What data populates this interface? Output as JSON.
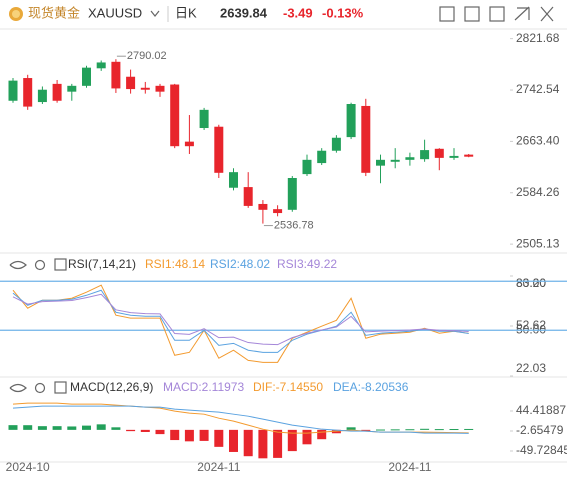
{
  "header": {
    "name": "现货黄金",
    "symbol": "XAUUSD",
    "period": "日K",
    "price": "2639.84",
    "change": "-3.49",
    "change_pct": "-0.13%"
  },
  "chart_data": [
    {
      "type": "candlestick",
      "categories": [
        null,
        "2024-10",
        null,
        null,
        null,
        null,
        null,
        null,
        null,
        null,
        null,
        null,
        null,
        null,
        "2024-11",
        null,
        null,
        null,
        null,
        null,
        null,
        null,
        null,
        null,
        null,
        null,
        null,
        "2024-11",
        null,
        null,
        null,
        null
      ],
      "open": [
        2726,
        2761,
        2724,
        2752,
        2740,
        2749,
        2776,
        2786,
        2763,
        2746,
        2749,
        2751,
        2663,
        2684,
        2686,
        2592,
        2593,
        2567,
        2559,
        2558,
        2613,
        2630,
        2649,
        2670,
        2718,
        2626,
        2632,
        2635,
        2636,
        2652,
        2638,
        2643
      ],
      "high": [
        2761,
        2766,
        2748,
        2758,
        2752,
        2780,
        2788,
        2790.02,
        2774,
        2755,
        2752,
        2752,
        2704,
        2715,
        2689,
        2622,
        2616,
        2573,
        2565,
        2610,
        2643,
        2653,
        2673,
        2723,
        2729,
        2643,
        2653,
        2646,
        2666,
        2653,
        2653,
        2644
      ],
      "low": [
        2723,
        2712,
        2721,
        2723,
        2726,
        2746,
        2772,
        2738,
        2737,
        2737,
        2732,
        2653,
        2644,
        2681,
        2607,
        2588,
        2561,
        2536.78,
        2548,
        2555,
        2610,
        2627,
        2646,
        2667,
        2610,
        2599,
        2622,
        2626,
        2632,
        2619,
        2635,
        2639
      ],
      "close": [
        2757,
        2717,
        2743,
        2726,
        2749,
        2777,
        2785,
        2745,
        2744,
        2743,
        2740,
        2656,
        2656,
        2712,
        2615,
        2616,
        2564,
        2558,
        2553,
        2607,
        2635,
        2649,
        2669,
        2721,
        2615,
        2635,
        2635,
        2639,
        2650,
        2638,
        2641,
        2639.84
      ],
      "up_color": "#22a05a",
      "down_color": "#e8252c",
      "ylim": [
        2493,
        2835
      ],
      "yticks": [
        {
          "value": 2821.68,
          "label": "2821.68"
        },
        {
          "value": 2742.54,
          "label": "2742.54"
        },
        {
          "value": 2663.4,
          "label": "2663.40"
        },
        {
          "value": 2584.26,
          "label": "2584.26"
        },
        {
          "value": 2505.13,
          "label": "2505.13"
        }
      ]
    },
    {
      "type": "line",
      "title": "RSI(7,14,21)",
      "series": [
        {
          "name": "RSI1:48.14",
          "color": "#f39a2e",
          "values": [
            74.5,
            63.5,
            68.4,
            68.4,
            69.6,
            73.3,
            77.6,
            59.2,
            57.4,
            57.4,
            57.4,
            34.7,
            36.5,
            50.0,
            32.9,
            37.8,
            31.6,
            30.4,
            30.4,
            45.1,
            48.8,
            52.5,
            56.1,
            69.6,
            45.1,
            47.6,
            48.2,
            48.8,
            51.2,
            48.2,
            49.4,
            48.14
          ]
        },
        {
          "name": "RSI2:48.02",
          "color": "#5aa2e0",
          "values": [
            72.7,
            65.3,
            68.4,
            68.4,
            69.0,
            71.4,
            74.5,
            61.0,
            59.2,
            58.6,
            58.6,
            43.9,
            43.9,
            50.0,
            40.8,
            42.0,
            37.8,
            36.5,
            36.5,
            43.9,
            47.6,
            50.0,
            52.5,
            61.0,
            46.9,
            48.2,
            48.8,
            49.4,
            50.6,
            49.4,
            49.4,
            48.02
          ]
        },
        {
          "name": "RSI3:49.22",
          "color": "#a486d8",
          "values": [
            70.5,
            66.0,
            67.5,
            67.8,
            68.2,
            70.0,
            72.0,
            62.5,
            60.8,
            60.2,
            60.0,
            48.0,
            47.5,
            51.0,
            45.5,
            45.8,
            42.5,
            41.5,
            41.2,
            45.5,
            48.2,
            50.2,
            52.0,
            58.5,
            49.0,
            49.5,
            49.8,
            50.2,
            50.8,
            50.0,
            49.8,
            49.22
          ]
        }
      ],
      "ylim": [
        22.03,
        83.2
      ],
      "yticks": [
        {
          "value": 83.2,
          "label": "83.20"
        },
        {
          "value": 80,
          "label": "80.00"
        },
        {
          "value": 52.62,
          "label": "52.62"
        },
        {
          "value": 50,
          "label": "50.00"
        },
        22.03
      ],
      "reference_lines": [
        80,
        50
      ],
      "reference_color": "#6fb3e8"
    },
    {
      "type": "bar",
      "title": "MACD(12,26,9)",
      "series": [
        {
          "name": "MACD:2.11973",
          "color": "#a486d8",
          "up_color": "#22a05a",
          "down_color": "#e8252c",
          "values": [
            11.1,
            11.0,
            8.7,
            8.7,
            8.0,
            10.0,
            13.0,
            6.0,
            -3.0,
            -5.0,
            -10.0,
            -24.0,
            -27.0,
            -26.0,
            -40.0,
            -52.0,
            -62.0,
            -67.0,
            -66.0,
            -50.0,
            -34.0,
            -22.0,
            -8.0,
            6.0,
            -1.5,
            0.8,
            1.2,
            1.5,
            2.5,
            1.8,
            2.0,
            2.11973
          ]
        },
        {
          "name": "DIF:-7.14550",
          "color": "#f39a2e",
          "values": [
            60.5,
            62.8,
            62.8,
            62.8,
            60.5,
            60.5,
            60.5,
            58.1,
            55.8,
            53.4,
            51.1,
            44.0,
            39.3,
            36.9,
            27.5,
            20.5,
            11.1,
            1.6,
            -5.4,
            -7.8,
            -7.8,
            -5.4,
            -3.1,
            -0.7,
            -3.1,
            -5.4,
            -5.4,
            -5.4,
            -5.4,
            -6.0,
            -6.6,
            -7.1455
          ]
        },
        {
          "name": "DEA:-8.20536",
          "color": "#5aa2e0",
          "values": [
            51.1,
            53.4,
            55.8,
            55.8,
            55.8,
            55.8,
            55.8,
            55.8,
            55.8,
            53.4,
            53.4,
            48.7,
            46.4,
            44.0,
            41.7,
            36.9,
            32.2,
            25.2,
            18.1,
            11.1,
            6.4,
            1.6,
            -0.7,
            -3.1,
            -3.1,
            -5.4,
            -5.4,
            -5.4,
            -7.8,
            -7.8,
            -7.8,
            -8.20536
          ]
        }
      ],
      "ylim": [
        -78,
        105.6
      ],
      "yticks": [
        44.41887,
        -2.65479,
        -49.72845
      ]
    }
  ]
}
